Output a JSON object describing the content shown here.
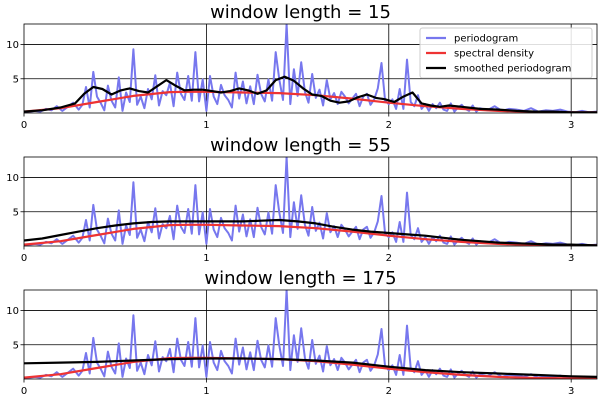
{
  "chart_data": [
    {
      "type": "line",
      "title": "window length = 15",
      "xlim": [
        0,
        3.1416
      ],
      "ylim": [
        0,
        13
      ],
      "xticks": [
        0,
        1,
        2,
        3
      ],
      "yticks": [
        5,
        10
      ],
      "grid": true,
      "legend_position": "top-right",
      "legend": [
        "periodogram",
        "spectral density",
        "smoothed periodogram"
      ],
      "series": [
        {
          "name": "periodogram",
          "color": "#7777ee",
          "x": [
            0.0,
            0.03,
            0.06,
            0.09,
            0.12,
            0.15,
            0.18,
            0.21,
            0.24,
            0.27,
            0.3,
            0.32,
            0.34,
            0.36,
            0.38,
            0.4,
            0.42,
            0.44,
            0.46,
            0.48,
            0.5,
            0.52,
            0.54,
            0.56,
            0.58,
            0.6,
            0.62,
            0.64,
            0.66,
            0.68,
            0.7,
            0.72,
            0.74,
            0.76,
            0.78,
            0.8,
            0.82,
            0.84,
            0.86,
            0.88,
            0.9,
            0.92,
            0.94,
            0.96,
            0.98,
            1.0,
            1.02,
            1.04,
            1.06,
            1.08,
            1.1,
            1.12,
            1.14,
            1.16,
            1.18,
            1.2,
            1.22,
            1.24,
            1.26,
            1.28,
            1.3,
            1.32,
            1.34,
            1.36,
            1.38,
            1.4,
            1.42,
            1.44,
            1.46,
            1.48,
            1.5,
            1.52,
            1.54,
            1.56,
            1.58,
            1.6,
            1.62,
            1.64,
            1.66,
            1.68,
            1.7,
            1.72,
            1.74,
            1.76,
            1.78,
            1.8,
            1.82,
            1.84,
            1.86,
            1.88,
            1.9,
            1.92,
            1.94,
            1.96,
            1.98,
            2.0,
            2.02,
            2.04,
            2.06,
            2.08,
            2.1,
            2.12,
            2.14,
            2.16,
            2.18,
            2.2,
            2.22,
            2.24,
            2.26,
            2.28,
            2.3,
            2.32,
            2.34,
            2.36,
            2.38,
            2.4,
            2.42,
            2.44,
            2.46,
            2.48,
            2.5,
            2.54,
            2.58,
            2.62,
            2.66,
            2.7,
            2.74,
            2.78,
            2.82,
            2.86,
            2.9,
            2.94,
            2.98,
            3.02,
            3.06,
            3.1,
            3.14
          ],
          "y": [
            0.1,
            0.2,
            0.3,
            0.2,
            0.6,
            0.4,
            1.0,
            0.3,
            0.9,
            1.5,
            0.5,
            1.2,
            3.8,
            0.8,
            6.0,
            2.4,
            1.5,
            0.4,
            4.0,
            1.8,
            0.8,
            5.2,
            0.3,
            3.0,
            1.6,
            9.3,
            1.2,
            2.4,
            0.7,
            3.5,
            2.0,
            5.5,
            1.1,
            3.2,
            2.6,
            4.4,
            1.0,
            5.9,
            2.8,
            1.9,
            5.4,
            1.8,
            8.9,
            1.7,
            4.9,
            0.3,
            5.4,
            2.4,
            1.3,
            4.1,
            2.6,
            1.9,
            0.8,
            5.9,
            2.1,
            4.6,
            1.4,
            3.9,
            1.3,
            5.6,
            2.8,
            1.7,
            4.9,
            1.8,
            8.9,
            4.9,
            1.9,
            13.0,
            1.3,
            6.4,
            2.5,
            7.4,
            3.1,
            1.5,
            5.7,
            2.2,
            3.4,
            1.1,
            4.8,
            2.0,
            2.9,
            1.3,
            3.1,
            2.4,
            1.4,
            2.1,
            2.8,
            1.0,
            2.4,
            2.8,
            1.2,
            2.0,
            3.6,
            7.3,
            1.8,
            1.3,
            2.0,
            0.6,
            3.5,
            0.6,
            7.8,
            1.6,
            1.0,
            2.6,
            0.6,
            1.3,
            0.3,
            1.3,
            0.7,
            1.5,
            0.5,
            0.3,
            1.4,
            0.2,
            0.8,
            1.2,
            0.6,
            0.3,
            1.1,
            0.2,
            0.7,
            0.4,
            1.0,
            0.3,
            0.6,
            0.5,
            0.3,
            0.7,
            0.2,
            0.4,
            0.3,
            0.5,
            0.2,
            0.1,
            0.3,
            0.1,
            0.2
          ]
        },
        {
          "name": "spectral density",
          "color": "#ee3333",
          "x": [
            0.0,
            0.2,
            0.4,
            0.6,
            0.8,
            0.9,
            1.0,
            1.2,
            1.4,
            1.6,
            1.8,
            2.0,
            2.2,
            2.4,
            2.6,
            2.8,
            3.0,
            3.14
          ],
          "y": [
            0.2,
            0.7,
            1.6,
            2.5,
            3.05,
            3.1,
            3.1,
            3.0,
            2.9,
            2.6,
            2.1,
            1.5,
            1.0,
            0.6,
            0.3,
            0.15,
            0.1,
            0.1
          ]
        },
        {
          "name": "smoothed periodogram",
          "color": "#000000",
          "x": [
            0.0,
            0.1,
            0.2,
            0.28,
            0.33,
            0.38,
            0.43,
            0.48,
            0.53,
            0.58,
            0.63,
            0.68,
            0.73,
            0.78,
            0.83,
            0.88,
            0.93,
            0.98,
            1.03,
            1.08,
            1.13,
            1.18,
            1.23,
            1.28,
            1.33,
            1.38,
            1.43,
            1.48,
            1.53,
            1.58,
            1.63,
            1.68,
            1.73,
            1.78,
            1.83,
            1.88,
            1.93,
            1.98,
            2.03,
            2.08,
            2.13,
            2.18,
            2.23,
            2.28,
            2.33,
            2.4,
            2.5,
            2.6,
            2.7,
            2.8,
            2.9,
            3.0,
            3.14
          ],
          "y": [
            0.2,
            0.4,
            0.8,
            1.4,
            2.8,
            3.8,
            3.5,
            2.7,
            3.3,
            3.6,
            3.2,
            3.0,
            3.9,
            4.8,
            4.0,
            3.3,
            3.4,
            3.4,
            3.2,
            3.0,
            3.2,
            3.6,
            3.3,
            2.8,
            3.3,
            4.8,
            5.3,
            4.7,
            3.6,
            2.7,
            2.5,
            1.8,
            1.5,
            1.7,
            2.3,
            2.7,
            2.2,
            2.0,
            1.6,
            2.4,
            3.0,
            1.4,
            1.1,
            0.9,
            1.1,
            0.9,
            0.6,
            0.5,
            0.3,
            0.2,
            0.2,
            0.1,
            0.1
          ]
        }
      ]
    },
    {
      "type": "line",
      "title": "window length = 55",
      "xlim": [
        0,
        3.1416
      ],
      "ylim": [
        0,
        13
      ],
      "xticks": [
        0,
        1,
        2,
        3
      ],
      "yticks": [
        5,
        10
      ],
      "grid": true,
      "series": [
        {
          "name": "periodogram",
          "color": "#7777ee",
          "same_as_first_panel": true
        },
        {
          "name": "spectral density",
          "color": "#ee3333",
          "same_as_first_panel": true
        },
        {
          "name": "smoothed periodogram",
          "color": "#000000",
          "x": [
            0.0,
            0.1,
            0.2,
            0.3,
            0.4,
            0.5,
            0.6,
            0.7,
            0.8,
            0.9,
            1.0,
            1.1,
            1.2,
            1.3,
            1.4,
            1.5,
            1.6,
            1.7,
            1.8,
            1.9,
            2.0,
            2.1,
            2.2,
            2.3,
            2.4,
            2.5,
            2.6,
            2.7,
            2.8,
            2.9,
            3.0,
            3.14
          ],
          "y": [
            0.8,
            1.1,
            1.6,
            2.1,
            2.6,
            3.0,
            3.3,
            3.5,
            3.6,
            3.6,
            3.6,
            3.6,
            3.6,
            3.7,
            3.8,
            3.6,
            3.3,
            2.8,
            2.4,
            2.1,
            1.9,
            1.7,
            1.5,
            1.2,
            0.9,
            0.7,
            0.5,
            0.4,
            0.3,
            0.2,
            0.2,
            0.1
          ]
        }
      ]
    },
    {
      "type": "line",
      "title": "window length = 175",
      "xlim": [
        0,
        3.1416
      ],
      "ylim": [
        0,
        13
      ],
      "xticks": [
        0,
        1,
        2,
        3
      ],
      "yticks": [
        5,
        10
      ],
      "grid": true,
      "series": [
        {
          "name": "periodogram",
          "color": "#7777ee",
          "same_as_first_panel": true
        },
        {
          "name": "spectral density",
          "color": "#ee3333",
          "same_as_first_panel": true
        },
        {
          "name": "smoothed periodogram",
          "color": "#000000",
          "x": [
            0.0,
            0.2,
            0.4,
            0.6,
            0.8,
            1.0,
            1.2,
            1.4,
            1.6,
            1.8,
            2.0,
            2.2,
            2.4,
            2.6,
            2.8,
            3.0,
            3.14
          ],
          "y": [
            2.3,
            2.4,
            2.5,
            2.7,
            2.9,
            3.0,
            3.0,
            2.9,
            2.7,
            2.4,
            1.8,
            1.3,
            1.0,
            0.8,
            0.6,
            0.4,
            0.3
          ]
        }
      ]
    }
  ]
}
